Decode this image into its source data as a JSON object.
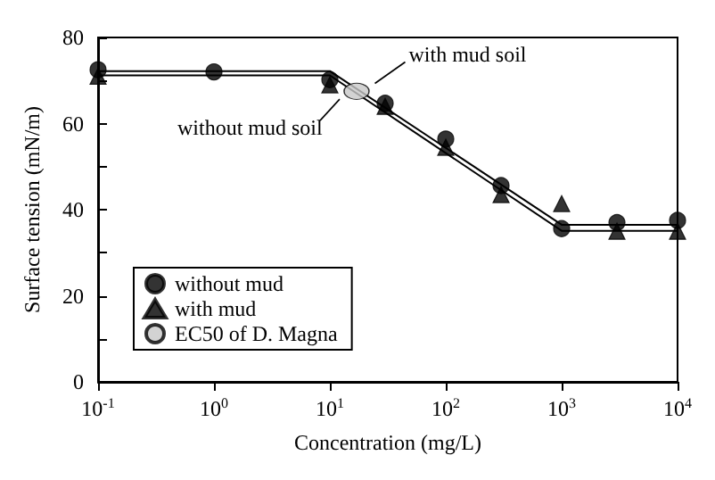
{
  "chart_data": {
    "type": "scatter",
    "xlabel": "Concentration (mg/L)",
    "ylabel": "Surface tension (mN/m)",
    "log": "x",
    "xlim": [
      0.1,
      10000
    ],
    "xticks": [
      {
        "value": 0.1,
        "label": "10$^{-1}$"
      },
      {
        "value": 1,
        "label": "10$^{0}$"
      },
      {
        "value": 10,
        "label": "10$^{1}$"
      },
      {
        "value": 100,
        "label": "10$^{2}$"
      },
      {
        "value": 1000,
        "label": "10$^{3}$"
      },
      {
        "value": 10000,
        "label": "10$^{4}$"
      }
    ],
    "ylim": [
      0,
      80
    ],
    "yticks": [
      0,
      {
        "value": 10,
        "label": null
      },
      20,
      {
        "value": 30,
        "label": null
      },
      40,
      {
        "value": 50,
        "label": null
      },
      60,
      {
        "value": 70,
        "label": null
      },
      80
    ],
    "grid": false,
    "legend": "bottom left",
    "series": [
      {
        "type": "line",
        "color": "#000000",
        "marker": "none",
        "x": [
          0.1,
          10,
          1000,
          10000
        ],
        "values": [
          72.2,
          72.2,
          36.5,
          36.5
        ]
      },
      {
        "type": "line",
        "color": "#000000",
        "marker": "none",
        "x": [
          0.1,
          10,
          1000,
          10000
        ],
        "values": [
          71.2,
          71.2,
          35.1,
          35.1
        ]
      },
      {
        "name": "without mud",
        "marker": "circle",
        "color": "#000000",
        "x": [
          0.1,
          1,
          10,
          30,
          100,
          300,
          1000,
          3000,
          10000
        ],
        "values": [
          72.5,
          72,
          70.2,
          64.7,
          56.4,
          45.6,
          35.6,
          37,
          37.5
        ]
      },
      {
        "name": "with mud",
        "marker": "triangle",
        "color": "#000000",
        "x": [
          0.1,
          10,
          30,
          100,
          300,
          1000,
          3000,
          10000
        ],
        "values": [
          71,
          69,
          64,
          54.5,
          43.5,
          41.4,
          35,
          35
        ]
      },
      {
        "name": "EC50 of D. Magna",
        "marker": "circle",
        "color": "#c8c8c8",
        "x": [
          17
        ],
        "values": [
          67.5
        ]
      }
    ],
    "annotations": [
      {
        "text": "with mud soil",
        "x": 22,
        "y": 68.5
      },
      {
        "text": "without mud soil",
        "x": 14,
        "y": 66.5
      }
    ]
  }
}
